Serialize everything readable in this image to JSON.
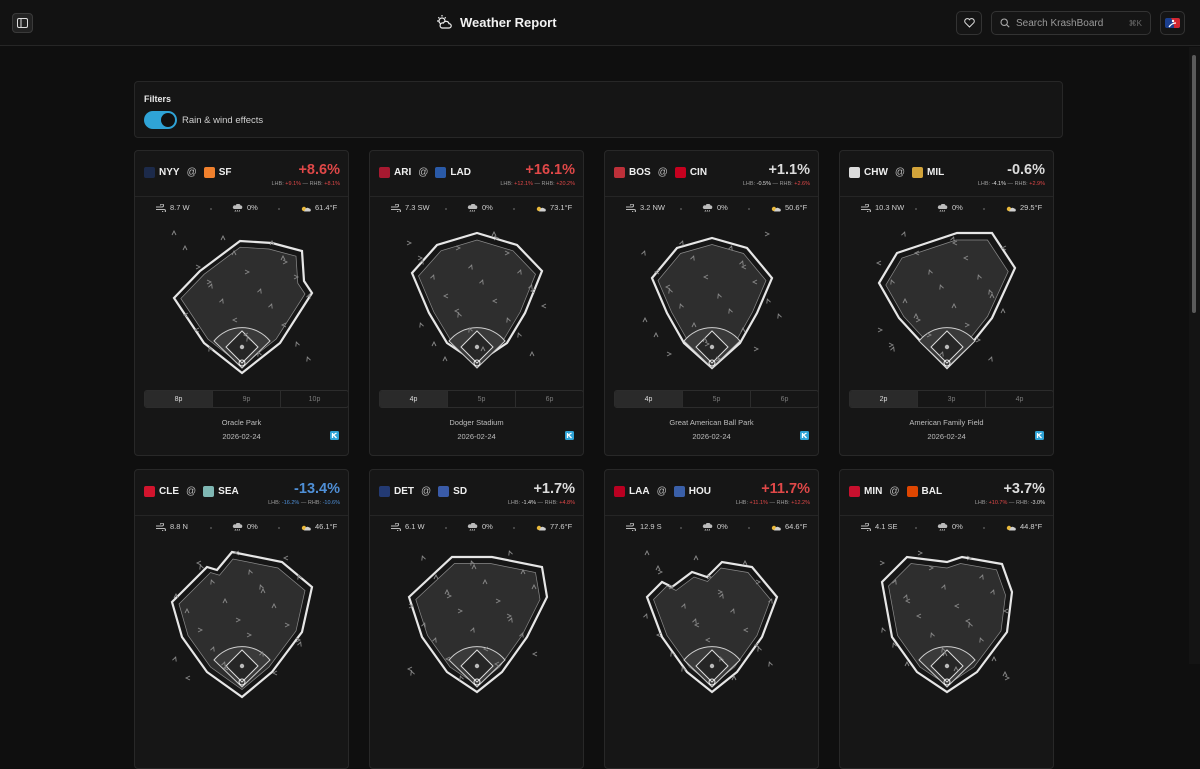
{
  "header": {
    "title": "Weather Report",
    "search_placeholder": "Search KrashBoard",
    "search_shortcut": "⌘K",
    "icons": [
      "sidebar-toggle-icon",
      "weather-sun-cloud-icon",
      "heart-icon",
      "search-icon",
      "mlb-logo-icon"
    ]
  },
  "filters": {
    "title": "Filters",
    "toggle_label": "Rain & wind effects",
    "toggle_on": true
  },
  "colors": {
    "accent": "#2fa3d6",
    "positive": "#e04848",
    "negative": "#4f8fd6",
    "neutral": "#dcdcdc"
  },
  "games": [
    {
      "away": "NYY",
      "home": "SF",
      "pct": "+8.6%",
      "tone": "pos",
      "lhb_label": "LHB:",
      "lhb": "+9.1%",
      "rhb_label": "— RHB:",
      "rhb": "+8.1%",
      "wind": "8.7 W",
      "rain": "0%",
      "temp": "61.4°F",
      "times": [
        "8p",
        "9p",
        "10p"
      ],
      "active": 0,
      "stadium": "Oracle Park",
      "date": "2026-02-24"
    },
    {
      "away": "ARI",
      "home": "LAD",
      "pct": "+16.1%",
      "tone": "pos",
      "lhb_label": "LHB:",
      "lhb": "+12.1%",
      "rhb_label": "— RHB:",
      "rhb": "+20.2%",
      "wind": "7.3 SW",
      "rain": "0%",
      "temp": "73.1°F",
      "times": [
        "4p",
        "5p",
        "6p"
      ],
      "active": 0,
      "stadium": "Dodger Stadium",
      "date": "2026-02-24"
    },
    {
      "away": "BOS",
      "home": "CIN",
      "pct": "+1.1%",
      "tone": "neu",
      "lhb_label": "LHB:",
      "lhb": "-0.5%",
      "rhb_label": "— RHB:",
      "rhb": "+2.6%",
      "wind": "3.2 NW",
      "rain": "0%",
      "temp": "50.6°F",
      "times": [
        "4p",
        "5p",
        "6p"
      ],
      "active": 0,
      "stadium": "Great American Ball Park",
      "date": "2026-02-24"
    },
    {
      "away": "CHW",
      "home": "MIL",
      "pct": "-0.6%",
      "tone": "neu",
      "lhb_label": "LHB:",
      "lhb": "-4.1%",
      "rhb_label": "— RHB:",
      "rhb": "+2.9%",
      "wind": "10.3 NW",
      "rain": "0%",
      "temp": "29.5°F",
      "times": [
        "2p",
        "3p",
        "4p"
      ],
      "active": 0,
      "stadium": "American Family Field",
      "date": "2026-02-24"
    },
    {
      "away": "CLE",
      "home": "SEA",
      "pct": "-13.4%",
      "tone": "neg",
      "lhb_label": "LHB:",
      "lhb": "-16.2%",
      "rhb_label": "— RHB:",
      "rhb": "-10.6%",
      "wind": "8.8 N",
      "rain": "0%",
      "temp": "46.1°F"
    },
    {
      "away": "DET",
      "home": "SD",
      "pct": "+1.7%",
      "tone": "neu",
      "lhb_label": "LHB:",
      "lhb": "-1.4%",
      "rhb_label": "— RHB:",
      "rhb": "+4.8%",
      "wind": "6.1 W",
      "rain": "0%",
      "temp": "77.6°F"
    },
    {
      "away": "LAA",
      "home": "HOU",
      "pct": "+11.7%",
      "tone": "pos",
      "lhb_label": "LHB:",
      "lhb": "+11.1%",
      "rhb_label": "— RHB:",
      "rhb": "+12.2%",
      "wind": "12.9 S",
      "rain": "0%",
      "temp": "64.6°F"
    },
    {
      "away": "MIN",
      "home": "BAL",
      "pct": "+3.7%",
      "tone": "neu",
      "lhb_label": "LHB:",
      "lhb": "+10.7%",
      "rhb_label": "— RHB:",
      "rhb": "-3.0%",
      "wind": "4.1 SE",
      "rain": "0%",
      "temp": "44.8°F"
    }
  ]
}
